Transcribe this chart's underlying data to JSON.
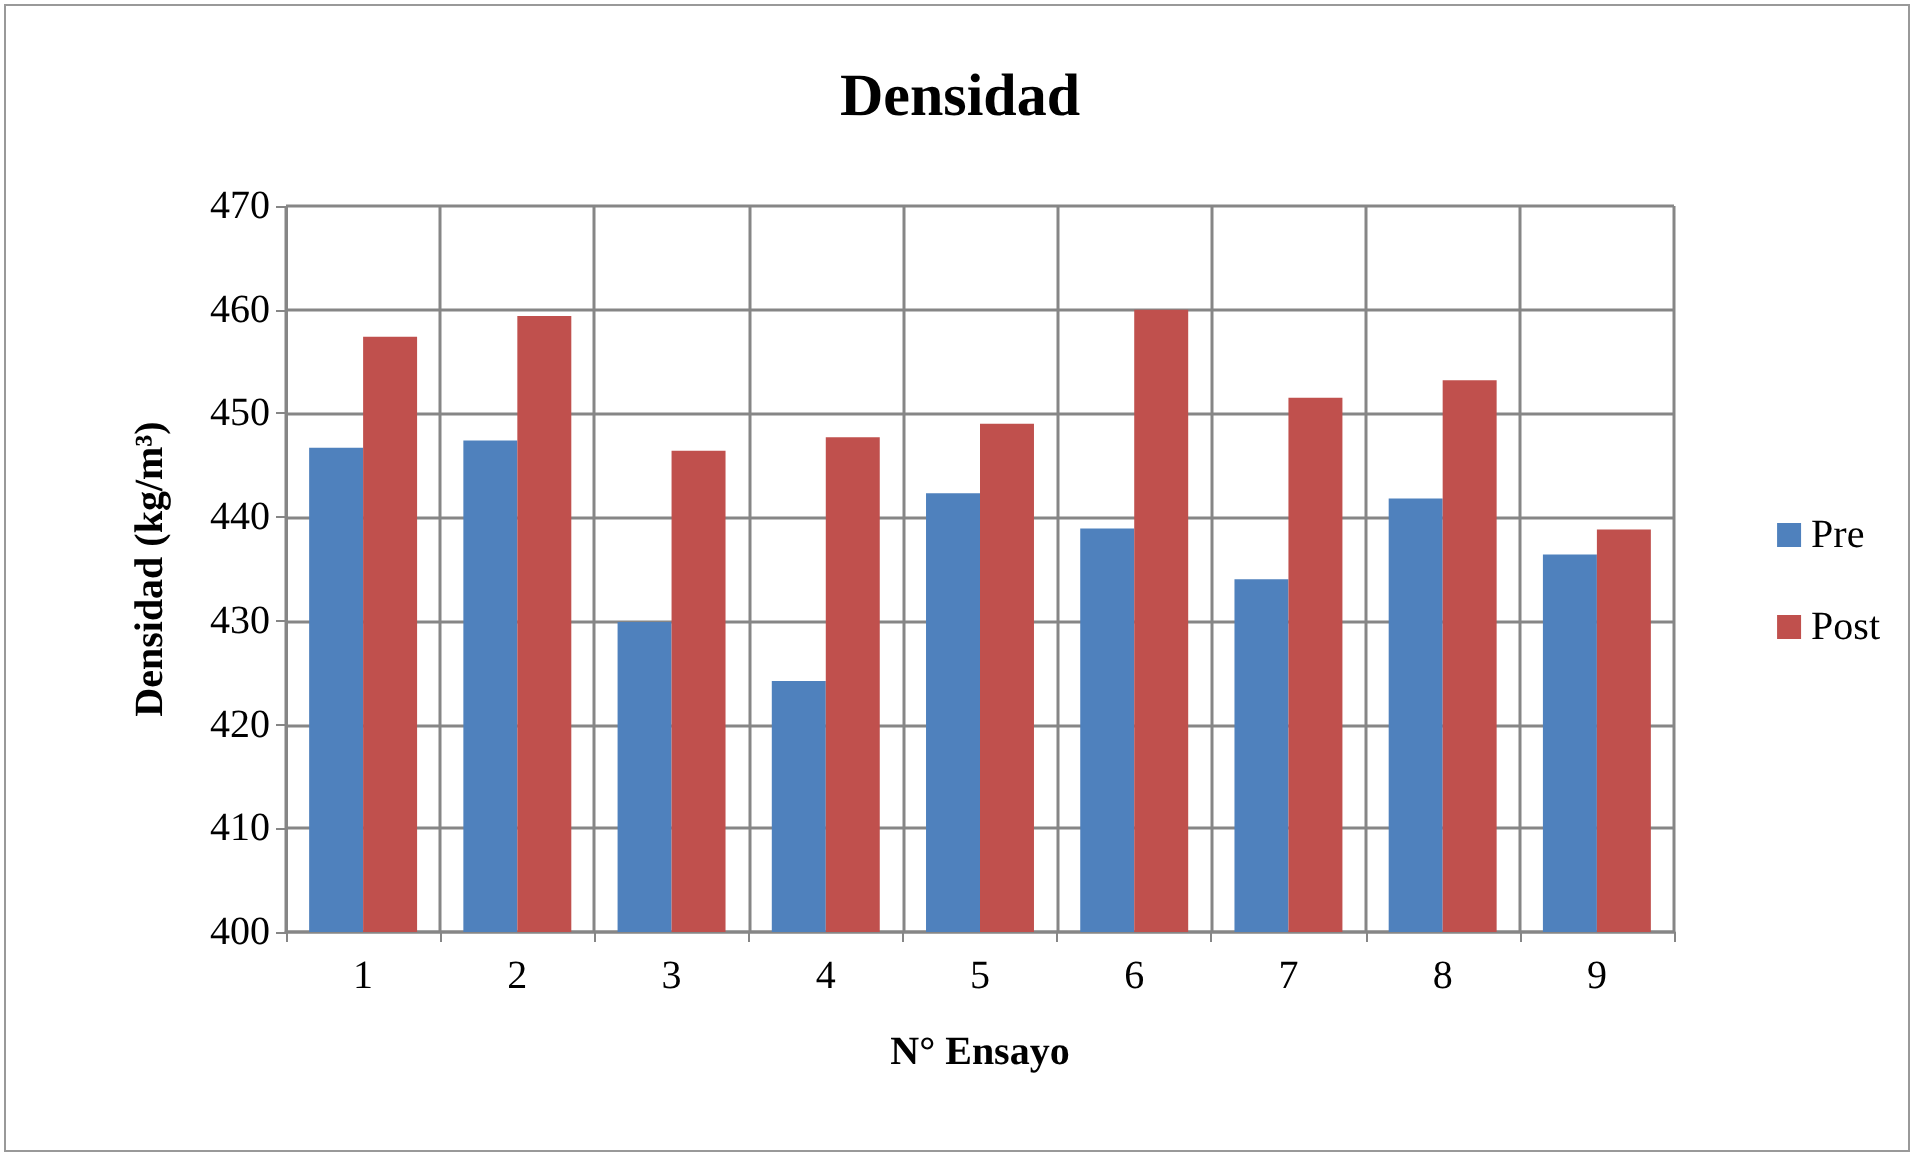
{
  "chart_data": {
    "type": "bar",
    "title": "Densidad",
    "xlabel": "N° Ensayo",
    "ylabel": "Densidad (kg/m³)",
    "categories": [
      "1",
      "2",
      "3",
      "4",
      "5",
      "6",
      "7",
      "8",
      "9"
    ],
    "series": [
      {
        "name": "Pre",
        "color": "#4f81bd",
        "values": [
          446.7,
          447.4,
          429.9,
          424.2,
          442.3,
          438.9,
          434.0,
          441.8,
          436.4
        ]
      },
      {
        "name": "Post",
        "color": "#c0504d",
        "values": [
          457.4,
          459.4,
          446.4,
          447.7,
          449.0,
          460.0,
          451.5,
          453.2,
          438.8
        ]
      }
    ],
    "ylim": [
      400,
      470
    ],
    "yticks": [
      400,
      410,
      420,
      430,
      440,
      450,
      460,
      470
    ],
    "grid": true,
    "legend": "right"
  }
}
